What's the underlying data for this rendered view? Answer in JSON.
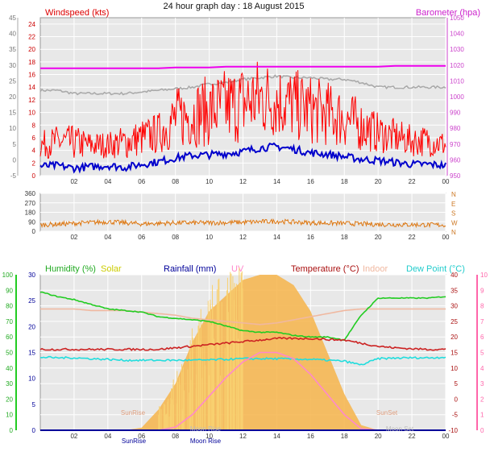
{
  "title": "24 hour graph day : 18 August 2015",
  "colors": {
    "background": "#ffffff",
    "plot_bg": "#e8e8e8",
    "grid": "#ffffff",
    "wind": "#ee0000",
    "gust": "#ff0000",
    "avg_wind": "#0000cc",
    "baro": "#ee00ee",
    "baro_hist": "#aaaaaa",
    "winddir": "#dd7711",
    "humidity": "#22cc22",
    "solar": "#f6b44a",
    "solar_max": "#ddaa44",
    "rain": "#000099",
    "uv": "#ff88cc",
    "temp": "#cc2222",
    "indoor": "#f0b8a0",
    "dew": "#22dddd",
    "yaxis_left_wind": "#777777",
    "yaxis_right_wind": "#cc44cc"
  },
  "chart_data": [
    {
      "type": "line",
      "panel": "wind",
      "ylabel_left": "Windspeed (kts)",
      "ylabel_right": "Barometer (hpa)",
      "x_ticks": [
        "02",
        "04",
        "06",
        "08",
        "10",
        "12",
        "14",
        "16",
        "18",
        "20",
        "22",
        "00"
      ],
      "yticks_left_outer": [
        "-5",
        "0",
        "5",
        "10",
        "15",
        "20",
        "25",
        "30",
        "35",
        "40",
        "45"
      ],
      "yticks_left_inner": [
        "0",
        "2",
        "4",
        "6",
        "8",
        "10",
        "12",
        "14",
        "16",
        "18",
        "20",
        "22",
        "24"
      ],
      "yticks_right": [
        "950",
        "960",
        "970",
        "980",
        "990",
        "1000",
        "1010",
        "1020",
        "1030",
        "1040",
        "1050"
      ],
      "ylim_left": [
        0,
        25
      ],
      "ylim_right": [
        950,
        1050
      ],
      "x_hours": [
        0,
        1,
        2,
        3,
        4,
        5,
        6,
        7,
        8,
        9,
        10,
        11,
        12,
        13,
        14,
        15,
        16,
        17,
        18,
        19,
        20,
        21,
        22,
        23,
        24
      ],
      "series": [
        {
          "name": "Windspeed (kts)",
          "key": "gust",
          "values": [
            4,
            5,
            5,
            4,
            4,
            5,
            6,
            7,
            11,
            12,
            13,
            14,
            15,
            16,
            15,
            14,
            13,
            12,
            11,
            9,
            7,
            6,
            5,
            5,
            4
          ]
        },
        {
          "name": "",
          "key": "avg_wind",
          "values": [
            1.5,
            1.6,
            1.2,
            1.4,
            1.6,
            1.3,
            1.8,
            2.2,
            2.8,
            3.2,
            3.3,
            3.5,
            3.8,
            4.4,
            4.6,
            4.2,
            3.6,
            3.4,
            3.0,
            2.6,
            2.4,
            2.1,
            1.8,
            1.8,
            1.6
          ]
        },
        {
          "name": "Barometer (hpa)",
          "key": "baro",
          "values": [
            1018,
            1018,
            1018,
            1018,
            1018,
            1018,
            1018,
            1018,
            1018.5,
            1018.5,
            1018.5,
            1019,
            1019,
            1019,
            1019,
            1019,
            1019,
            1019,
            1019,
            1019,
            1019,
            1019.5,
            1019.5,
            1019.5,
            1019.5
          ]
        },
        {
          "name": "",
          "key": "baro_hist",
          "values": [
            1004,
            1004,
            1002,
            1002,
            1002,
            1002,
            1003,
            1004,
            1005,
            1006,
            1008,
            1009,
            1011,
            1012,
            1013,
            1012,
            1012,
            1011,
            1011,
            1009,
            1006,
            1006,
            1006,
            1006,
            1006
          ]
        }
      ]
    },
    {
      "type": "scatter",
      "panel": "wind_direction",
      "yticks": [
        "0",
        "90",
        "180",
        "270",
        "360"
      ],
      "compass": [
        "N",
        "W",
        "S",
        "E",
        "N"
      ],
      "ylim": [
        0,
        360
      ],
      "x_ticks": [
        "02",
        "04",
        "06",
        "08",
        "10",
        "12",
        "14",
        "16",
        "18",
        "20",
        "22",
        "00"
      ],
      "x_hours": [
        0,
        2,
        4,
        6,
        8,
        10,
        12,
        14,
        16,
        18,
        20,
        22,
        24
      ],
      "values": [
        60,
        75,
        90,
        70,
        80,
        80,
        85,
        95,
        80,
        75,
        65,
        62,
        60
      ]
    },
    {
      "type": "line",
      "panel": "climate",
      "labels": {
        "humidity": "Humidity (%)",
        "solar": "Solar",
        "rain": "Rainfall (mm)",
        "uv": "UV",
        "temp": "Temperature (°C)",
        "indoor": "Indoor",
        "dew": "Dew Point (°C)"
      },
      "yticks_far_left": [
        "0",
        "10",
        "20",
        "30",
        "40",
        "50",
        "60",
        "70",
        "80",
        "90",
        "100"
      ],
      "yticks_left": [
        "0",
        "5",
        "10",
        "15",
        "20",
        "25",
        "30"
      ],
      "yticks_right": [
        "-10",
        "-5",
        "0",
        "5",
        "10",
        "15",
        "20",
        "25",
        "30",
        "35",
        "40"
      ],
      "yticks_far_right": [
        "0",
        "1",
        "2",
        "3",
        "4",
        "5",
        "6",
        "7",
        "8",
        "9",
        "10"
      ],
      "x_ticks": [
        "02",
        "04",
        "06",
        "08",
        "10",
        "12",
        "14",
        "16",
        "18",
        "20",
        "22",
        "00"
      ],
      "annotations": [
        "SunRise",
        "SunSet",
        "Moon Rise",
        "Moon Set",
        "SunRise",
        "Moon Rise"
      ],
      "x_hours": [
        0,
        1,
        2,
        3,
        4,
        5,
        6,
        7,
        8,
        9,
        10,
        11,
        12,
        13,
        14,
        15,
        16,
        17,
        18,
        19,
        20,
        21,
        22,
        23,
        24
      ],
      "series": [
        {
          "name": "Humidity (%)",
          "key": "humidity",
          "values": [
            89,
            86,
            84,
            81,
            78,
            77,
            76,
            73,
            72,
            71,
            70,
            67,
            64,
            63,
            63,
            61,
            60,
            60,
            58,
            74,
            85,
            85,
            85,
            85,
            86
          ]
        },
        {
          "name": "Temperature (°C)",
          "key": "temp",
          "values": [
            16,
            16,
            16,
            16,
            16,
            16,
            16,
            16,
            16.5,
            17,
            17.5,
            18,
            18.5,
            19,
            19.5,
            19.5,
            19.5,
            19.2,
            19,
            18,
            17,
            16.5,
            16.2,
            16,
            16
          ]
        },
        {
          "name": "Dew Point (°C)",
          "key": "dew",
          "values": [
            13.5,
            13.3,
            13.3,
            13,
            12.8,
            12.5,
            12.5,
            12.5,
            12.5,
            12.5,
            12.6,
            12.8,
            13,
            13,
            13,
            12.9,
            12.8,
            12.5,
            12.2,
            11,
            13,
            13.2,
            13.3,
            13.3,
            13.5
          ]
        },
        {
          "name": "Indoor",
          "key": "indoor",
          "values": [
            29,
            29,
            29,
            28.5,
            28.5,
            28.5,
            28,
            27.5,
            27,
            26,
            25.5,
            25,
            24.5,
            24,
            24.5,
            25.5,
            26.5,
            27.5,
            28.5,
            29,
            29,
            29,
            29,
            29,
            29
          ]
        },
        {
          "name": "UV",
          "key": "uv",
          "values": [
            0,
            0,
            0,
            0,
            0,
            0,
            0,
            0,
            0.2,
            1.0,
            2.2,
            3.4,
            4.4,
            5,
            5,
            4.6,
            3.6,
            2.3,
            1.0,
            0.1,
            0,
            0,
            0,
            0,
            0
          ]
        },
        {
          "name": "Solar",
          "key": "solar",
          "values": [
            0,
            0,
            0,
            0,
            0,
            0,
            0.5,
            4,
            9,
            17,
            23,
            26,
            29,
            30,
            30,
            28,
            23,
            15,
            7,
            1,
            0,
            0,
            0,
            0,
            0
          ]
        }
      ]
    }
  ]
}
